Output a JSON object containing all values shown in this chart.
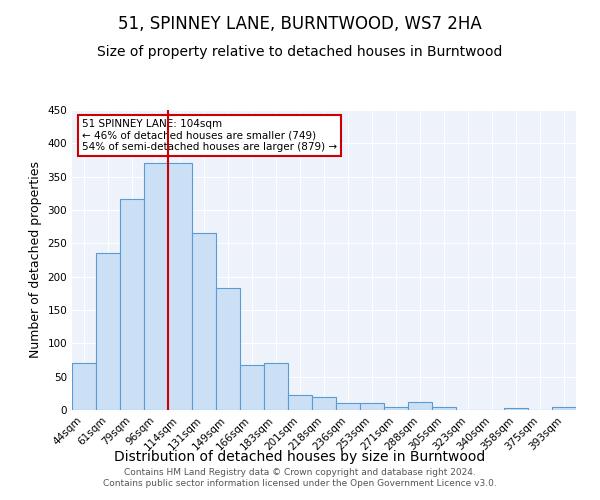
{
  "title": "51, SPINNEY LANE, BURNTWOOD, WS7 2HA",
  "subtitle": "Size of property relative to detached houses in Burntwood",
  "xlabel": "Distribution of detached houses by size in Burntwood",
  "ylabel": "Number of detached properties",
  "categories": [
    "44sqm",
    "61sqm",
    "79sqm",
    "96sqm",
    "114sqm",
    "131sqm",
    "149sqm",
    "166sqm",
    "183sqm",
    "201sqm",
    "218sqm",
    "236sqm",
    "253sqm",
    "271sqm",
    "288sqm",
    "305sqm",
    "323sqm",
    "340sqm",
    "358sqm",
    "375sqm",
    "393sqm"
  ],
  "values": [
    70,
    236,
    316,
    370,
    370,
    265,
    183,
    68,
    70,
    22,
    20,
    10,
    10,
    5,
    12,
    4,
    0,
    0,
    3,
    0,
    4
  ],
  "bar_color": "#cce0f5",
  "bar_edge_color": "#5b9bd5",
  "vline_color": "#cc0000",
  "annotation_text": "51 SPINNEY LANE: 104sqm\n← 46% of detached houses are smaller (749)\n54% of semi-detached houses are larger (879) →",
  "annotation_box_color": "white",
  "annotation_box_edge_color": "#cc0000",
  "ylim": [
    0,
    450
  ],
  "yticks": [
    0,
    50,
    100,
    150,
    200,
    250,
    300,
    350,
    400,
    450
  ],
  "footer_line1": "Contains HM Land Registry data © Crown copyright and database right 2024.",
  "footer_line2": "Contains public sector information licensed under the Open Government Licence v3.0.",
  "bg_color": "#edf2fb",
  "title_fontsize": 12,
  "subtitle_fontsize": 10,
  "xlabel_fontsize": 10,
  "ylabel_fontsize": 9,
  "tick_fontsize": 7.5,
  "footer_fontsize": 6.5,
  "grid_color": "#ffffff"
}
